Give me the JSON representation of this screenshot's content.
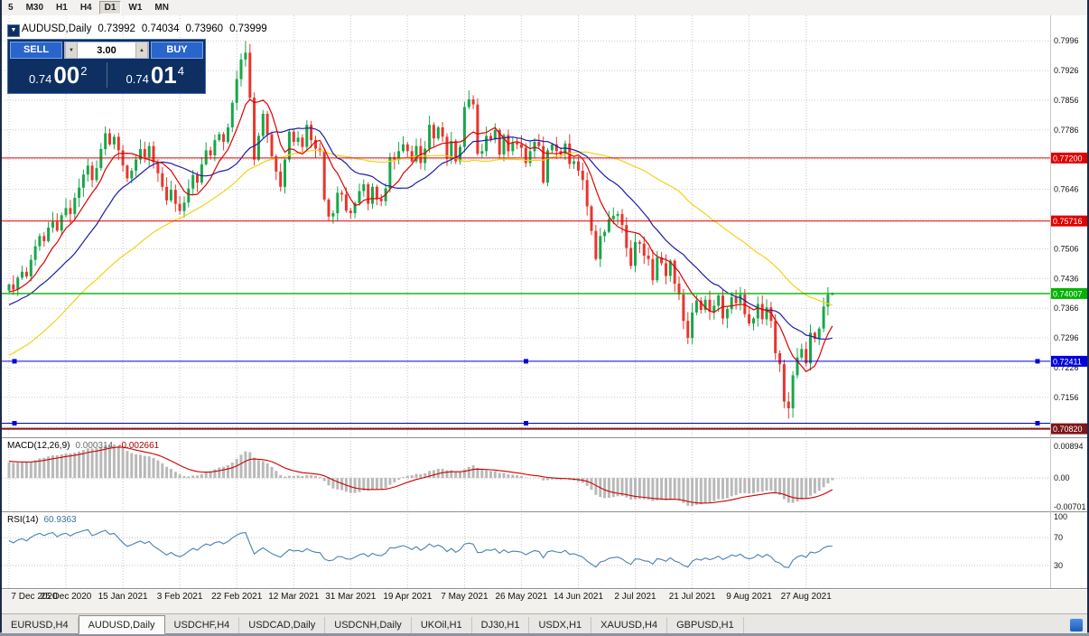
{
  "toolbar": {
    "timeframes": [
      "5",
      "M30",
      "H1",
      "H4",
      "D1",
      "W1",
      "MN"
    ],
    "active": "D1"
  },
  "symbol_line": {
    "symbol": "AUDUSD,Daily",
    "open": "0.73992",
    "high": "0.74034",
    "low": "0.73960",
    "close": "0.73999"
  },
  "trade_panel": {
    "sell_label": "SELL",
    "buy_label": "BUY",
    "volume": "3.00",
    "sell_price": {
      "prefix": "0.74",
      "big": "00",
      "sup": "2"
    },
    "buy_price": {
      "prefix": "0.74",
      "big": "01",
      "sup": "4"
    },
    "collapse_icon": "▼",
    "volume_down_icon": "▼",
    "volume_up_icon": "▲"
  },
  "levels": [
    {
      "price": 0.772,
      "label": "0.77200",
      "color": "#e00000",
      "width": 1,
      "handles": false
    },
    {
      "price": 0.75716,
      "label": "0.75716",
      "color": "#e00000",
      "width": 1,
      "handles": false
    },
    {
      "price": 0.74007,
      "label": "0.74007",
      "color": "#00b400",
      "width": 1.4,
      "handles": false
    },
    {
      "price": 0.72411,
      "label": "0.72411",
      "color": "#0000dc",
      "width": 1,
      "handles": true
    },
    {
      "price": 0.7095,
      "label": "",
      "color": "#0000dc",
      "width": 1,
      "handles": true
    },
    {
      "price": 0.7082,
      "label": "0.70820",
      "color": "#7e1518",
      "width": 2,
      "handles": false
    }
  ],
  "chart_data": {
    "type": "candlestick",
    "symbol": "AUDUSD",
    "timeframe": "Daily",
    "price_min": 0.7062,
    "price_max": 0.8056,
    "price_axis_ticks": [
      "0.7996",
      "0.7926",
      "0.7856",
      "0.7786",
      "0.7716",
      "0.7646",
      "0.7576",
      "0.7506",
      "0.7436",
      "0.7366",
      "0.7296",
      "0.7226",
      "0.7156",
      "0.7086"
    ],
    "x_labels": [
      "7 Dec 2020",
      "25 Dec 2020",
      "15 Jan 2021",
      "3 Feb 2021",
      "22 Feb 2021",
      "12 Mar 2021",
      "31 Mar 2021",
      "19 Apr 2021",
      "7 May 2021",
      "26 May 2021",
      "14 Jun 2021",
      "2 Jul 2021",
      "21 Jul 2021",
      "9 Aug 2021",
      "27 Aug 2021"
    ],
    "x_label_indices": [
      0,
      13,
      26,
      39,
      52,
      65,
      78,
      91,
      104,
      117,
      130,
      143,
      156,
      169,
      182
    ],
    "pre_closes": [
      0.716,
      0.7145,
      0.7128,
      0.715,
      0.7132,
      0.7118,
      0.7095,
      0.711,
      0.7086,
      0.707,
      0.7092,
      0.7064,
      0.7048,
      0.7034,
      0.706,
      0.7082,
      0.7105,
      0.714,
      0.7188,
      0.7235,
      0.7262,
      0.7246,
      0.7288,
      0.727,
      0.7296,
      0.7312,
      0.7285,
      0.7305,
      0.7328,
      0.731,
      0.7296,
      0.7318,
      0.7342,
      0.733,
      0.7352,
      0.7338,
      0.736,
      0.7345,
      0.7368,
      0.7385,
      0.7372,
      0.7356,
      0.7378,
      0.7395,
      0.741,
      0.7398,
      0.7385,
      0.7402,
      0.7418,
      0.7408
    ],
    "closes": [
      0.7422,
      0.741,
      0.7438,
      0.7452,
      0.7441,
      0.748,
      0.7512,
      0.7536,
      0.7524,
      0.7556,
      0.757,
      0.7549,
      0.7585,
      0.7602,
      0.7588,
      0.7626,
      0.765,
      0.7681,
      0.7702,
      0.7668,
      0.7696,
      0.7741,
      0.7778,
      0.7752,
      0.777,
      0.7738,
      0.7702,
      0.7672,
      0.769,
      0.7716,
      0.7741,
      0.7722,
      0.7748,
      0.771,
      0.7684,
      0.7652,
      0.762,
      0.7645,
      0.7612,
      0.7595,
      0.7615,
      0.7648,
      0.768,
      0.7662,
      0.7705,
      0.7738,
      0.7726,
      0.7762,
      0.7776,
      0.7758,
      0.7792,
      0.785,
      0.7906,
      0.7952,
      0.7968,
      0.7862,
      0.7716,
      0.7772,
      0.7824,
      0.7776,
      0.7724,
      0.7688,
      0.7652,
      0.7716,
      0.7782,
      0.7758,
      0.7768,
      0.7746,
      0.7798,
      0.7762,
      0.7742,
      0.7736,
      0.7622,
      0.7582,
      0.759,
      0.7638,
      0.7634,
      0.7596,
      0.759,
      0.7614,
      0.7642,
      0.7658,
      0.7612,
      0.7652,
      0.7624,
      0.7618,
      0.7648,
      0.7722,
      0.7716,
      0.7736,
      0.7752,
      0.7736,
      0.7712,
      0.7748,
      0.7708,
      0.7742,
      0.7798,
      0.7766,
      0.7792,
      0.777,
      0.7718,
      0.776,
      0.7712,
      0.7746,
      0.784,
      0.7858,
      0.7846,
      0.773,
      0.7736,
      0.7772,
      0.7764,
      0.7786,
      0.7728,
      0.7774,
      0.7736,
      0.7756,
      0.7752,
      0.7744,
      0.7708,
      0.7736,
      0.7758,
      0.7748,
      0.7662,
      0.7738,
      0.7752,
      0.7736,
      0.7728,
      0.7754,
      0.7706,
      0.7712,
      0.769,
      0.7668,
      0.7606,
      0.7548,
      0.7482,
      0.7536,
      0.7546,
      0.7576,
      0.7584,
      0.7588,
      0.7562,
      0.7508,
      0.7466,
      0.7522,
      0.7518,
      0.749,
      0.7482,
      0.7432,
      0.7486,
      0.7472,
      0.7442,
      0.7478,
      0.7424,
      0.7398,
      0.7336,
      0.7296,
      0.7356,
      0.7384,
      0.7362,
      0.7386,
      0.7358,
      0.7372,
      0.7396,
      0.7342,
      0.7364,
      0.7392,
      0.7378,
      0.7398,
      0.7352,
      0.733,
      0.7342,
      0.7376,
      0.734,
      0.7368,
      0.7336,
      0.726,
      0.7234,
      0.7146,
      0.713,
      0.7208,
      0.725,
      0.727,
      0.7236,
      0.7308,
      0.7294,
      0.7318,
      0.737,
      0.7398,
      0.74
    ],
    "wick_overrides": {
      "54": {
        "high": 0.7996
      },
      "134": {
        "low": 0.7478
      },
      "178": {
        "low": 0.7106
      },
      "188": {
        "high": 0.74034,
        "low": 0.7396
      }
    },
    "last_candle": {
      "open": 0.73992,
      "high": 0.74034,
      "low": 0.7396,
      "close": 0.73999
    },
    "moving_averages": [
      {
        "period": 8,
        "color": "#e00000"
      },
      {
        "period": 20,
        "color": "#1c1ca8"
      },
      {
        "period": 50,
        "color": "#f4d216"
      }
    ],
    "indicators": {
      "macd": {
        "label": "MACD(12,26,9)",
        "value_main": "0.000314",
        "value_signal": "-0.002661",
        "fast": 12,
        "slow": 26,
        "signal": 9,
        "axis": [
          "0.00894",
          "0.00",
          "-0.00701"
        ],
        "hist_color": "#b9b9b9",
        "signal_color": "#cc0000"
      },
      "rsi": {
        "label": "RSI(14)",
        "value": "60.9363",
        "period": 14,
        "axis": [
          "100",
          "70",
          "30"
        ],
        "levels": [
          70,
          30
        ],
        "color": "#4a7fb5"
      }
    }
  },
  "colors": {
    "bull": "#17a74a",
    "bear": "#e8352e",
    "grid": "#c9c9c9",
    "chart_bg": "#ffffff",
    "panel_navy": "#0d2f61",
    "button_blue": "#2a65cc"
  },
  "tabs": [
    {
      "label": "EURUSD,H4",
      "active": false
    },
    {
      "label": "AUDUSD,Daily",
      "active": true
    },
    {
      "label": "USDCHF,H4",
      "active": false
    },
    {
      "label": "USDCAD,Daily",
      "active": false
    },
    {
      "label": "USDCNH,Daily",
      "active": false
    },
    {
      "label": "UKOil,H1",
      "active": false
    },
    {
      "label": "DJ30,H1",
      "active": false
    },
    {
      "label": "USDX,H1",
      "active": false
    },
    {
      "label": "XAUUSD,H4",
      "active": false
    },
    {
      "label": "GBPUSD,H1",
      "active": false
    }
  ]
}
